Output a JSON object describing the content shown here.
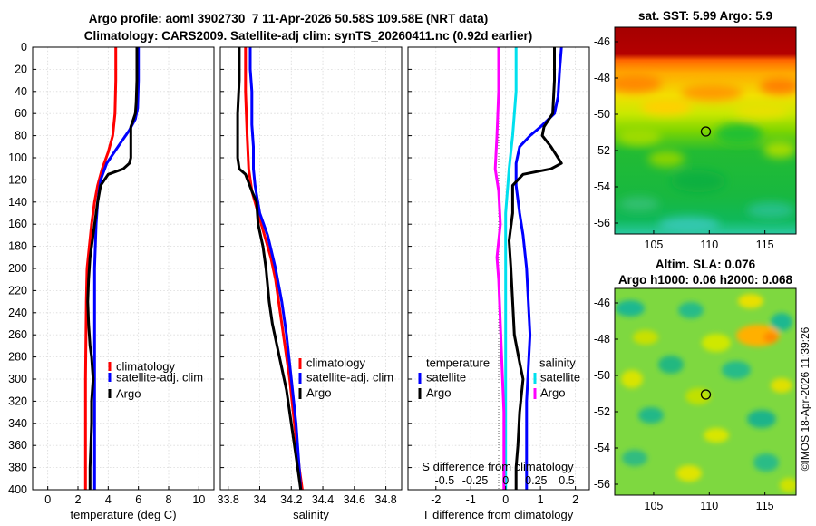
{
  "titles": {
    "line1": "Argo profile: aoml 3902730_7 11-Apr-2026 50.58S 109.58E (NRT data)",
    "line2": "Climatology: CARS2009. Satellite-adj clim: synTS_20260411.nc (0.92d earlier)"
  },
  "colors": {
    "climatology": "#ff0000",
    "satellite": "#0000ff",
    "argo": "#000000",
    "salinity_satellite": "#00e0ee",
    "salinity_argo": "#ff00ff"
  },
  "watermark": "©IMOS 18-Apr-2026 11:39:26",
  "chart_data": [
    {
      "type": "line",
      "name": "temperature-profile",
      "xlabel": "temperature (deg C)",
      "ylabel": "depth",
      "xlim": [
        -1,
        11
      ],
      "ylim": [
        400,
        0
      ],
      "xticks": [
        0,
        2,
        4,
        6,
        8,
        10
      ],
      "yticks": [
        0,
        20,
        40,
        60,
        80,
        100,
        120,
        140,
        160,
        180,
        200,
        220,
        240,
        260,
        280,
        300,
        320,
        340,
        360,
        380,
        400
      ],
      "grid": true,
      "legend": [
        "climatology",
        "satellite-adj. clim",
        "Argo"
      ],
      "legend_position": "lower-right",
      "series": [
        {
          "name": "climatology",
          "color_key": "climatology",
          "points": [
            [
              4.5,
              0
            ],
            [
              4.5,
              30
            ],
            [
              4.45,
              60
            ],
            [
              4.3,
              80
            ],
            [
              4.0,
              95
            ],
            [
              3.6,
              110
            ],
            [
              3.3,
              125
            ],
            [
              3.1,
              140
            ],
            [
              2.9,
              160
            ],
            [
              2.75,
              180
            ],
            [
              2.6,
              200
            ],
            [
              2.55,
              230
            ],
            [
              2.5,
              300
            ],
            [
              2.5,
              350
            ],
            [
              2.5,
              400
            ]
          ]
        },
        {
          "name": "satellite-adj. clim",
          "color_key": "satellite",
          "points": [
            [
              6.0,
              0
            ],
            [
              6.0,
              30
            ],
            [
              5.95,
              55
            ],
            [
              5.8,
              65
            ],
            [
              5.4,
              75
            ],
            [
              4.9,
              85
            ],
            [
              4.4,
              95
            ],
            [
              3.9,
              105
            ],
            [
              3.5,
              120
            ],
            [
              3.3,
              140
            ],
            [
              3.2,
              160
            ],
            [
              3.1,
              200
            ],
            [
              3.1,
              250
            ],
            [
              3.1,
              300
            ],
            [
              3.1,
              350
            ],
            [
              3.1,
              400
            ]
          ]
        },
        {
          "name": "Argo",
          "color_key": "argo",
          "points": [
            [
              5.9,
              0
            ],
            [
              5.9,
              30
            ],
            [
              5.85,
              50
            ],
            [
              5.8,
              60
            ],
            [
              5.6,
              68
            ],
            [
              5.5,
              72
            ],
            [
              5.5,
              85
            ],
            [
              5.5,
              100
            ],
            [
              5.4,
              105
            ],
            [
              5.0,
              110
            ],
            [
              4.0,
              115
            ],
            [
              3.5,
              125
            ],
            [
              3.3,
              140
            ],
            [
              3.2,
              150
            ],
            [
              3.0,
              170
            ],
            [
              2.8,
              190
            ],
            [
              2.7,
              210
            ],
            [
              2.65,
              230
            ],
            [
              2.7,
              250
            ],
            [
              2.8,
              270
            ],
            [
              2.9,
              280
            ],
            [
              3.0,
              300
            ],
            [
              2.9,
              320
            ],
            [
              2.9,
              340
            ],
            [
              2.85,
              360
            ],
            [
              2.8,
              380
            ],
            [
              2.8,
              400
            ]
          ]
        }
      ]
    },
    {
      "type": "line",
      "name": "salinity-profile",
      "xlabel": "salinity",
      "ylabel": "depth",
      "xlim": [
        33.75,
        34.9
      ],
      "ylim": [
        400,
        0
      ],
      "xticks": [
        33.8,
        34.0,
        34.2,
        34.4,
        34.6,
        34.8
      ],
      "xtick_labels": [
        "33.8",
        "34",
        "34.2",
        "34.4",
        "34.6",
        "34.8"
      ],
      "grid": true,
      "legend": [
        "climatology",
        "satellite-adj. clim",
        "Argo"
      ],
      "legend_position": "lower-right",
      "series": [
        {
          "name": "climatology",
          "color_key": "climatology",
          "points": [
            [
              33.91,
              0
            ],
            [
              33.91,
              40
            ],
            [
              33.92,
              80
            ],
            [
              33.93,
              110
            ],
            [
              33.95,
              130
            ],
            [
              33.99,
              150
            ],
            [
              34.03,
              170
            ],
            [
              34.07,
              190
            ],
            [
              34.1,
              210
            ],
            [
              34.13,
              240
            ],
            [
              34.16,
              270
            ],
            [
              34.19,
              300
            ],
            [
              34.22,
              340
            ],
            [
              34.25,
              380
            ],
            [
              34.27,
              400
            ]
          ]
        },
        {
          "name": "satellite-adj. clim",
          "color_key": "satellite",
          "points": [
            [
              33.94,
              0
            ],
            [
              33.94,
              20
            ],
            [
              33.95,
              40
            ],
            [
              33.95,
              70
            ],
            [
              33.96,
              90
            ],
            [
              33.96,
              110
            ],
            [
              33.97,
              125
            ],
            [
              34.0,
              150
            ],
            [
              34.05,
              170
            ],
            [
              34.1,
              200
            ],
            [
              34.14,
              230
            ],
            [
              34.17,
              260
            ],
            [
              34.2,
              300
            ],
            [
              34.23,
              340
            ],
            [
              34.25,
              380
            ],
            [
              34.26,
              400
            ]
          ]
        },
        {
          "name": "Argo",
          "color_key": "argo",
          "points": [
            [
              33.87,
              0
            ],
            [
              33.87,
              30
            ],
            [
              33.86,
              60
            ],
            [
              33.86,
              80
            ],
            [
              33.86,
              100
            ],
            [
              33.87,
              110
            ],
            [
              33.91,
              115
            ],
            [
              33.95,
              130
            ],
            [
              33.98,
              140
            ],
            [
              33.99,
              160
            ],
            [
              34.02,
              180
            ],
            [
              34.04,
              200
            ],
            [
              34.06,
              230
            ],
            [
              34.08,
              250
            ],
            [
              34.11,
              270
            ],
            [
              34.14,
              290
            ],
            [
              34.17,
              310
            ],
            [
              34.19,
              330
            ],
            [
              34.21,
              350
            ],
            [
              34.23,
              370
            ],
            [
              34.25,
              390
            ],
            [
              34.26,
              400
            ]
          ]
        }
      ]
    },
    {
      "type": "line",
      "name": "difference-profile",
      "xlabel": "T difference from climatology",
      "top_axis_label": "S difference from climatology",
      "xlim": [
        -2.8,
        2.4
      ],
      "ylim": [
        400,
        0
      ],
      "xticks": [
        -2,
        -1,
        0,
        1,
        2
      ],
      "top_ticks_T": [
        -1.75,
        -0.875,
        0,
        0.875,
        1.75
      ],
      "top_tick_labels": [
        "-0.5",
        "-0.25",
        "0",
        "0.25",
        "0.5"
      ],
      "grid": true,
      "legend_left_title": "temperature",
      "legend_left": [
        "satellite",
        "Argo"
      ],
      "legend_right_title": "salinity",
      "legend_right": [
        "satellite",
        "Argo"
      ],
      "series": [
        {
          "name": "temperature satellite",
          "color_key": "satellite",
          "points": [
            [
              1.6,
              0
            ],
            [
              1.55,
              20
            ],
            [
              1.5,
              45
            ],
            [
              1.4,
              60
            ],
            [
              1.0,
              72
            ],
            [
              0.7,
              80
            ],
            [
              0.4,
              90
            ],
            [
              0.3,
              105
            ],
            [
              0.3,
              125
            ],
            [
              0.4,
              150
            ],
            [
              0.5,
              170
            ],
            [
              0.6,
              200
            ],
            [
              0.65,
              230
            ],
            [
              0.7,
              260
            ],
            [
              0.65,
              290
            ],
            [
              0.6,
              320
            ],
            [
              0.6,
              350
            ],
            [
              0.6,
              380
            ],
            [
              0.6,
              400
            ]
          ]
        },
        {
          "name": "temperature Argo",
          "color_key": "argo",
          "points": [
            [
              1.4,
              0
            ],
            [
              1.4,
              30
            ],
            [
              1.35,
              60
            ],
            [
              1.1,
              72
            ],
            [
              1.05,
              80
            ],
            [
              1.3,
              90
            ],
            [
              1.5,
              100
            ],
            [
              1.6,
              105
            ],
            [
              1.3,
              110
            ],
            [
              0.5,
              115
            ],
            [
              0.2,
              125
            ],
            [
              0.2,
              150
            ],
            [
              0.1,
              175
            ],
            [
              0.15,
              200
            ],
            [
              0.2,
              230
            ],
            [
              0.25,
              260
            ],
            [
              0.4,
              285
            ],
            [
              0.5,
              300
            ],
            [
              0.4,
              330
            ],
            [
              0.35,
              360
            ],
            [
              0.3,
              380
            ],
            [
              0.3,
              400
            ]
          ]
        },
        {
          "name": "salinity satellite",
          "color_key": "salinity_satellite",
          "points": [
            [
              0.3,
              0
            ],
            [
              0.3,
              40
            ],
            [
              0.2,
              80
            ],
            [
              0.1,
              110
            ],
            [
              0.0,
              150
            ],
            [
              0.0,
              200
            ],
            [
              0.0,
              250
            ],
            [
              0.0,
              300
            ],
            [
              0.0,
              350
            ],
            [
              0.0,
              400
            ]
          ]
        },
        {
          "name": "salinity Argo",
          "color_key": "salinity_argo",
          "points": [
            [
              -0.2,
              0
            ],
            [
              -0.2,
              40
            ],
            [
              -0.25,
              80
            ],
            [
              -0.3,
              110
            ],
            [
              -0.2,
              130
            ],
            [
              -0.15,
              160
            ],
            [
              -0.25,
              190
            ],
            [
              -0.2,
              210
            ],
            [
              -0.15,
              250
            ],
            [
              -0.1,
              290
            ],
            [
              -0.05,
              330
            ],
            [
              -0.05,
              370
            ],
            [
              -0.05,
              400
            ]
          ]
        }
      ]
    },
    {
      "type": "heatmap",
      "name": "sst-map",
      "title": "sat. SST: 5.99 Argo: 5.9",
      "xlim": [
        101.5,
        117.8
      ],
      "ylim": [
        -56.6,
        -45.2
      ],
      "xticks": [
        105,
        110,
        115
      ],
      "yticks": [
        -46,
        -48,
        -50,
        -52,
        -54,
        -56
      ],
      "marker": {
        "lon": 109.58,
        "lat": -50.58
      }
    },
    {
      "type": "heatmap",
      "name": "sla-map",
      "title_line1": "Altim. SLA: 0.076",
      "title_line2": "Argo h1000: 0.06 h2000: 0.068",
      "xlim": [
        101.5,
        117.8
      ],
      "ylim": [
        -56.6,
        -45.2
      ],
      "xticks": [
        105,
        110,
        115
      ],
      "yticks": [
        -46,
        -48,
        -50,
        -52,
        -54,
        -56
      ],
      "marker": {
        "lon": 109.58,
        "lat": -50.58
      }
    }
  ]
}
